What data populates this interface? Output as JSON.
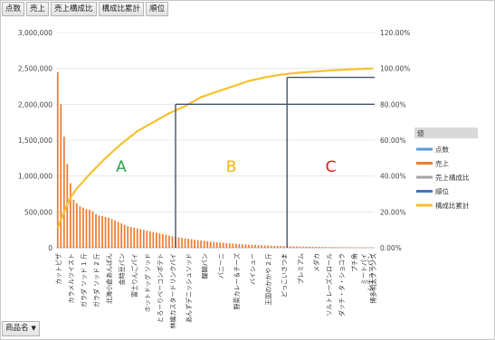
{
  "field_buttons": [
    "点数",
    "売上",
    "売上構成比",
    "構成比累計",
    "順位"
  ],
  "axis_field_button": "商品名",
  "axis_field_icon": "dropdown-arrow-icon",
  "colors": {
    "bars": "#ed7d31",
    "cumulative": "#f5c12e",
    "divider": "#44546a",
    "zone_a": "#2aa24a",
    "zone_b": "#f2b50c",
    "zone_c": "#e31b1b"
  },
  "chart_data": {
    "type": "bar",
    "y_left": {
      "ticks": [
        "0",
        "500,000",
        "1,000,000",
        "1,500,000",
        "2,000,000",
        "2,500,000",
        "3,000,000"
      ],
      "ylim": [
        0,
        3000000
      ]
    },
    "y_right": {
      "ticks": [
        "0.00%",
        "20.00%",
        "40.00%",
        "60.00%",
        "80.00%",
        "100.00%",
        "120.00%"
      ],
      "ylim": [
        0,
        120
      ]
    },
    "bar_count": 100,
    "bar_values": [
      2450000,
      2000000,
      1550000,
      1170000,
      900000,
      670000,
      620000,
      580000,
      560000,
      540000,
      530000,
      510000,
      470000,
      450000,
      440000,
      430000,
      420000,
      400000,
      380000,
      360000,
      340000,
      320000,
      300000,
      290000,
      280000,
      270000,
      260000,
      250000,
      240000,
      230000,
      220000,
      210000,
      200000,
      190000,
      180000,
      170000,
      160000,
      152000,
      145000,
      138000,
      131000,
      125000,
      119000,
      113000,
      107000,
      101000,
      96000,
      91000,
      86000,
      81000,
      77000,
      73000,
      69000,
      65000,
      61000,
      58000,
      55000,
      52000,
      49000,
      46000,
      43000,
      41000,
      39000,
      37000,
      35000,
      33000,
      31000,
      29000,
      27000,
      25000,
      24000,
      23000,
      22000,
      21000,
      20000,
      19000,
      18000,
      17000,
      16000,
      15000,
      14000,
      13000,
      12000,
      11000,
      10000,
      9500,
      9000,
      8500,
      8000,
      7500,
      7000,
      6500,
      6000,
      5500,
      5000,
      4500,
      4000,
      3500,
      3000,
      2500
    ],
    "cumulative_pct": [
      [
        0,
        11
      ],
      [
        2,
        20
      ],
      [
        4,
        28
      ],
      [
        6,
        33
      ],
      [
        10,
        41
      ],
      [
        15,
        50
      ],
      [
        20,
        58
      ],
      [
        25,
        65
      ],
      [
        30,
        70
      ],
      [
        35,
        75
      ],
      [
        40,
        79
      ],
      [
        45,
        84
      ],
      [
        50,
        87
      ],
      [
        55,
        90
      ],
      [
        60,
        93
      ],
      [
        65,
        95
      ],
      [
        70,
        96.5
      ],
      [
        75,
        97.5
      ],
      [
        80,
        98.2
      ],
      [
        85,
        98.8
      ],
      [
        90,
        99.3
      ],
      [
        95,
        99.7
      ],
      [
        99,
        100
      ]
    ],
    "category_labels": [
      {
        "i": 0,
        "text": "カットピザ"
      },
      {
        "i": 4,
        "text": "カラメルツイスト"
      },
      {
        "i": 8,
        "text": "ガラダ ソッド 1 斤"
      },
      {
        "i": 12,
        "text": "ガラダ ソッド 2 斤"
      },
      {
        "i": 16,
        "text": "北海小倉あんぱん"
      },
      {
        "i": 20,
        "text": "金時豆パン"
      },
      {
        "i": 24,
        "text": "富士りんごパイ"
      },
      {
        "i": 28,
        "text": "ホットドッグ ソッド"
      },
      {
        "i": 32,
        "text": "とろーりベーコンポテト"
      },
      {
        "i": 36,
        "text": "林檎カスタードリンクパイ"
      },
      {
        "i": 41,
        "text": "あんずデニッシュソッド"
      },
      {
        "i": 46,
        "text": "醍醐パン"
      },
      {
        "i": 51,
        "text": "バニーニ"
      },
      {
        "i": 56,
        "text": "野菜カレー＆チーズ"
      },
      {
        "i": 61,
        "text": "バイシュー"
      },
      {
        "i": 66,
        "text": "王国のかかや 2 斤"
      },
      {
        "i": 71,
        "text": "どっこいさつま"
      },
      {
        "i": 76,
        "text": "プレミアム"
      },
      {
        "i": 81,
        "text": "メダカ"
      },
      {
        "i": 85,
        "text": "ソルトレーズンロール"
      },
      {
        "i": 89,
        "text": "ダッチ・タ・ショコラ"
      },
      {
        "i": 93,
        "text": "プチ角"
      },
      {
        "i": 96,
        "text": "ミートパイ"
      },
      {
        "i": 98,
        "text": "シチューパン"
      },
      {
        "i": 99,
        "text": "博多明太フランス"
      }
    ],
    "cutoffs": [
      {
        "bar_index": 37,
        "pct": 80
      },
      {
        "bar_index": 72,
        "pct": 95
      }
    ],
    "zones": [
      "A",
      "B",
      "C"
    ],
    "legend": {
      "title": "値",
      "items": [
        {
          "name": "点数",
          "color": "#5b9bd5"
        },
        {
          "name": "売上",
          "color": "#ed7d31"
        },
        {
          "name": "売上構成比",
          "color": "#a5a5a5"
        },
        {
          "name": "順位",
          "color": "#4472c4"
        },
        {
          "name": "構成比累計",
          "color": "#f5c12e"
        }
      ],
      "placement": "right"
    }
  }
}
